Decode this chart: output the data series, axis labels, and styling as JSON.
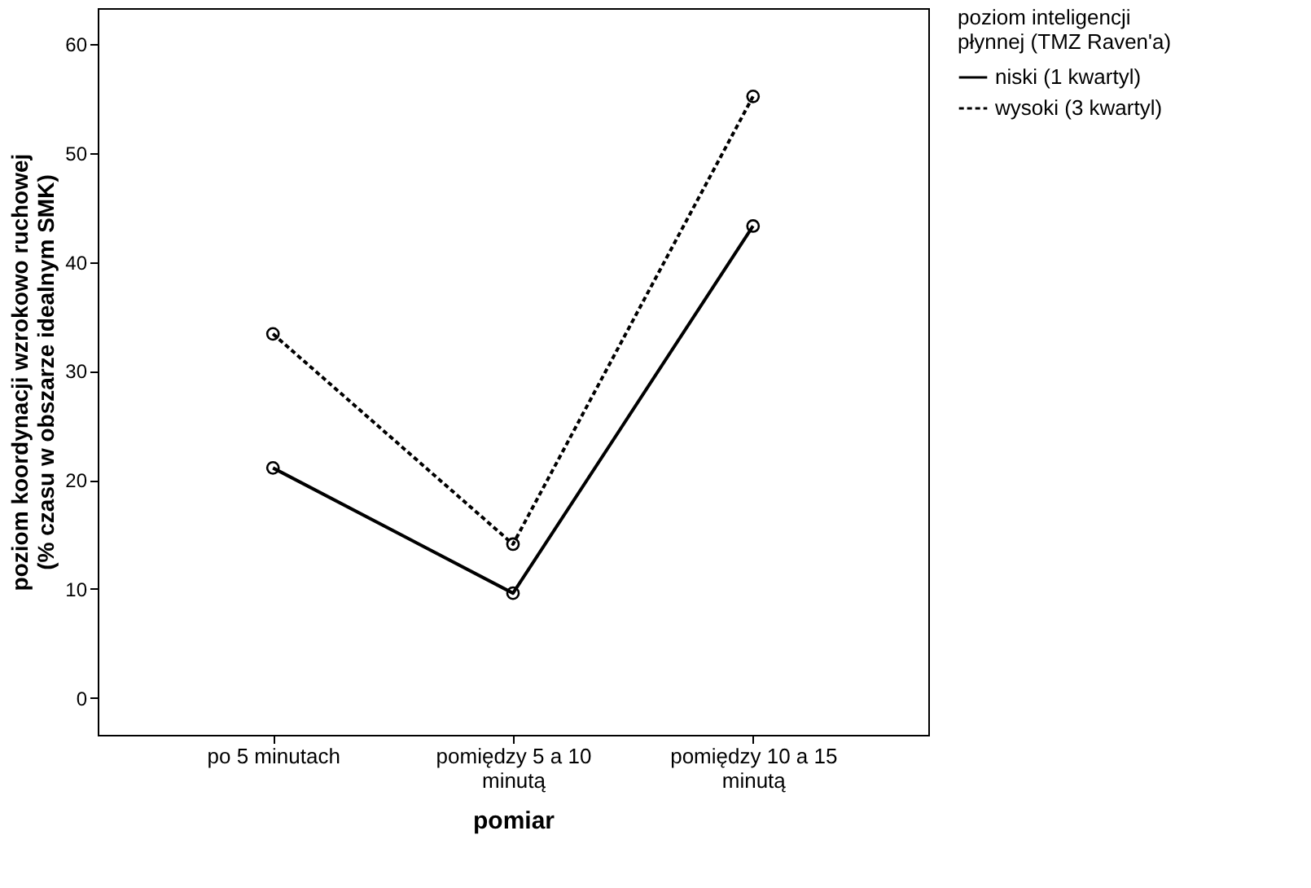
{
  "chart_data": {
    "type": "line",
    "xlabel": "pomiar",
    "ylabel": "poziom koordynacji wzrokowo ruchowej\n(% czasu w obszarze idealnym SMK)",
    "legend_title": "poziom inteligencji\npłynnej (TMZ Raven'a)",
    "categories": [
      "po 5 minutach",
      "pomiędzy 5 a 10\nminutą",
      "pomiędzy 10 a 15\nminutą"
    ],
    "series": [
      {
        "name": "niski (1 kwartyl)",
        "color": "#000000",
        "line_style": "solid",
        "values": [
          21.1,
          9.6,
          43.3
        ]
      },
      {
        "name": "wysoki (3 kwartyl)",
        "color": "#000000",
        "line_style": "dashed",
        "values": [
          33.4,
          14.1,
          55.2
        ]
      }
    ],
    "ylim": [
      -3.4,
      63.3
    ],
    "yticks": [
      0,
      10,
      20,
      30,
      40,
      50,
      60
    ],
    "grid": false,
    "legend": "top right",
    "marker": "circle"
  }
}
